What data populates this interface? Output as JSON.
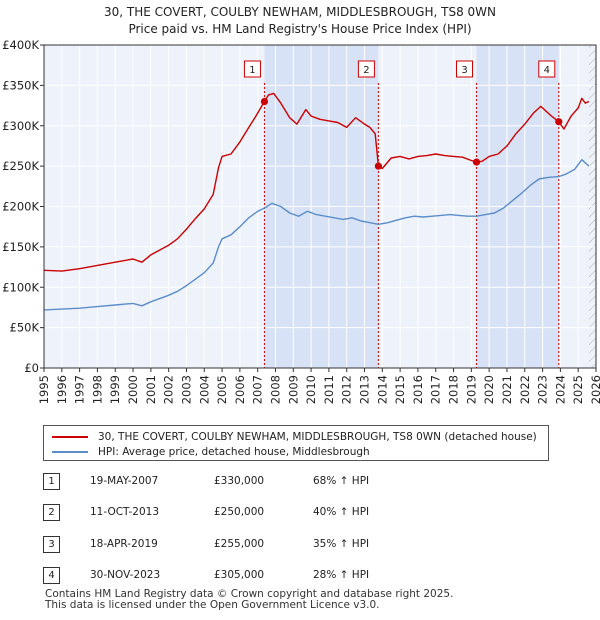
{
  "chart_data": {
    "type": "line",
    "title": "30, THE COVERT, COULBY NEWHAM, MIDDLESBROUGH, TS8 0WN",
    "subtitle": "Price paid vs. HM Land Registry's House Price Index (HPI)",
    "xlabel": "",
    "ylabel": "",
    "xlim": [
      1995,
      2026
    ],
    "ylim": [
      0,
      400000
    ],
    "x_ticks": [
      "1995",
      "1996",
      "1997",
      "1998",
      "1999",
      "2000",
      "2001",
      "2002",
      "2003",
      "2004",
      "2005",
      "2006",
      "2007",
      "2008",
      "2009",
      "2010",
      "2011",
      "2012",
      "2013",
      "2014",
      "2015",
      "2016",
      "2017",
      "2018",
      "2019",
      "2020",
      "2021",
      "2022",
      "2023",
      "2024",
      "2025",
      "2026"
    ],
    "y_ticks": [
      {
        "value": 0,
        "label": "£0"
      },
      {
        "value": 50000,
        "label": "£50K"
      },
      {
        "value": 100000,
        "label": "£100K"
      },
      {
        "value": 150000,
        "label": "£150K"
      },
      {
        "value": 200000,
        "label": "£200K"
      },
      {
        "value": 250000,
        "label": "£250K"
      },
      {
        "value": 300000,
        "label": "£300K"
      },
      {
        "value": 350000,
        "label": "£350K"
      },
      {
        "value": 400000,
        "label": "£400K"
      }
    ],
    "grid": true,
    "series": [
      {
        "name": "30, THE COVERT, COULBY NEWHAM, MIDDLESBROUGH, TS8 0WN (detached house)",
        "color": "#cc0000",
        "points": [
          [
            1995.0,
            121000
          ],
          [
            1996.0,
            120000
          ],
          [
            1997.0,
            123000
          ],
          [
            1998.0,
            127000
          ],
          [
            1999.0,
            131000
          ],
          [
            2000.0,
            135000
          ],
          [
            2000.5,
            131000
          ],
          [
            2001.0,
            140000
          ],
          [
            2002.0,
            152000
          ],
          [
            2002.5,
            160000
          ],
          [
            2003.0,
            172000
          ],
          [
            2003.5,
            185000
          ],
          [
            2004.0,
            197000
          ],
          [
            2004.5,
            215000
          ],
          [
            2004.8,
            248000
          ],
          [
            2005.0,
            262000
          ],
          [
            2005.5,
            265000
          ],
          [
            2006.0,
            280000
          ],
          [
            2006.5,
            298000
          ],
          [
            2006.9,
            312000
          ],
          [
            2007.38,
            330000
          ],
          [
            2007.6,
            338000
          ],
          [
            2007.9,
            340000
          ],
          [
            2008.3,
            328000
          ],
          [
            2008.8,
            310000
          ],
          [
            2009.2,
            302000
          ],
          [
            2009.7,
            320000
          ],
          [
            2010.0,
            312000
          ],
          [
            2010.5,
            308000
          ],
          [
            2011.0,
            306000
          ],
          [
            2011.5,
            304000
          ],
          [
            2012.0,
            298000
          ],
          [
            2012.5,
            310000
          ],
          [
            2013.0,
            302000
          ],
          [
            2013.3,
            298000
          ],
          [
            2013.6,
            290000
          ],
          [
            2013.78,
            250000
          ],
          [
            2014.0,
            247000
          ],
          [
            2014.5,
            260000
          ],
          [
            2015.0,
            262000
          ],
          [
            2015.5,
            259000
          ],
          [
            2016.0,
            262000
          ],
          [
            2016.5,
            263000
          ],
          [
            2017.0,
            265000
          ],
          [
            2017.5,
            263000
          ],
          [
            2018.0,
            262000
          ],
          [
            2018.5,
            261000
          ],
          [
            2019.0,
            257000
          ],
          [
            2019.29,
            255000
          ],
          [
            2019.6,
            256000
          ],
          [
            2020.0,
            262000
          ],
          [
            2020.5,
            265000
          ],
          [
            2021.0,
            275000
          ],
          [
            2021.5,
            290000
          ],
          [
            2022.0,
            302000
          ],
          [
            2022.5,
            316000
          ],
          [
            2022.9,
            324000
          ],
          [
            2023.2,
            318000
          ],
          [
            2023.5,
            312000
          ],
          [
            2023.91,
            305000
          ],
          [
            2024.2,
            296000
          ],
          [
            2024.6,
            312000
          ],
          [
            2025.0,
            322000
          ],
          [
            2025.2,
            334000
          ],
          [
            2025.4,
            328000
          ],
          [
            2025.6,
            330000
          ]
        ]
      },
      {
        "name": "HPI: Average price, detached house, Middlesbrough",
        "color": "#5b8dc9",
        "points": [
          [
            1995.0,
            72000
          ],
          [
            1996.0,
            73000
          ],
          [
            1997.0,
            74000
          ],
          [
            1998.0,
            76000
          ],
          [
            1999.0,
            78000
          ],
          [
            2000.0,
            80000
          ],
          [
            2000.5,
            77000
          ],
          [
            2001.0,
            82000
          ],
          [
            2002.0,
            90000
          ],
          [
            2002.5,
            95000
          ],
          [
            2003.0,
            102000
          ],
          [
            2003.5,
            110000
          ],
          [
            2004.0,
            118000
          ],
          [
            2004.5,
            130000
          ],
          [
            2004.8,
            150000
          ],
          [
            2005.0,
            160000
          ],
          [
            2005.5,
            165000
          ],
          [
            2006.0,
            175000
          ],
          [
            2006.5,
            186000
          ],
          [
            2007.0,
            194000
          ],
          [
            2007.38,
            198000
          ],
          [
            2007.8,
            204000
          ],
          [
            2008.3,
            200000
          ],
          [
            2008.8,
            192000
          ],
          [
            2009.3,
            188000
          ],
          [
            2009.8,
            194000
          ],
          [
            2010.3,
            190000
          ],
          [
            2010.8,
            188000
          ],
          [
            2011.3,
            186000
          ],
          [
            2011.8,
            184000
          ],
          [
            2012.3,
            186000
          ],
          [
            2012.8,
            182000
          ],
          [
            2013.3,
            180000
          ],
          [
            2013.78,
            178000
          ],
          [
            2014.3,
            180000
          ],
          [
            2014.8,
            183000
          ],
          [
            2015.3,
            186000
          ],
          [
            2015.8,
            188000
          ],
          [
            2016.3,
            187000
          ],
          [
            2016.8,
            188000
          ],
          [
            2017.3,
            189000
          ],
          [
            2017.8,
            190000
          ],
          [
            2018.3,
            189000
          ],
          [
            2018.8,
            188000
          ],
          [
            2019.29,
            188000
          ],
          [
            2019.8,
            190000
          ],
          [
            2020.3,
            192000
          ],
          [
            2020.8,
            198000
          ],
          [
            2021.3,
            207000
          ],
          [
            2021.8,
            216000
          ],
          [
            2022.3,
            226000
          ],
          [
            2022.8,
            234000
          ],
          [
            2023.3,
            236000
          ],
          [
            2023.91,
            237000
          ],
          [
            2024.3,
            240000
          ],
          [
            2024.8,
            246000
          ],
          [
            2025.2,
            258000
          ],
          [
            2025.6,
            250000
          ]
        ]
      }
    ],
    "sales": [
      {
        "num": "1",
        "x": 2007.38,
        "price": 330000,
        "date": "19-MAY-2007",
        "price_label": "£330,000",
        "hpi": "68% ↑ HPI"
      },
      {
        "num": "2",
        "x": 2013.78,
        "price": 250000,
        "date": "11-OCT-2013",
        "price_label": "£250,000",
        "hpi": "40% ↑ HPI"
      },
      {
        "num": "3",
        "x": 2019.29,
        "price": 255000,
        "date": "18-APR-2019",
        "price_label": "£255,000",
        "hpi": "35% ↑ HPI"
      },
      {
        "num": "4",
        "x": 2023.91,
        "price": 305000,
        "date": "30-NOV-2023",
        "price_label": "£305,000",
        "hpi": "28% ↑ HPI"
      }
    ],
    "forecast_start": 2025.6,
    "colors": {
      "plot_bg": "#eef2fb",
      "highlight": "#d8e2f6",
      "grid": "#ffffff",
      "axis": "#333333",
      "hatch": "#b0b0b0",
      "sale_line": "#cc0000"
    }
  },
  "footer": {
    "line1": "Contains HM Land Registry data © Crown copyright and database right 2025.",
    "line2": "This data is licensed under the Open Government Licence v3.0."
  }
}
